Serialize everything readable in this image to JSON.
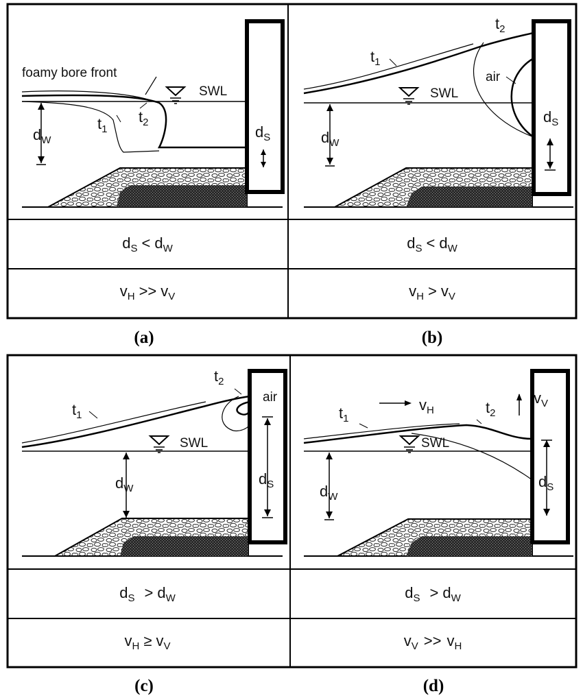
{
  "panels": {
    "a": {
      "caption": "(a)",
      "annotation": "foamy bore front",
      "swl": "SWL",
      "t1": "t",
      "t1_sub": "1",
      "t2": "t",
      "t2_sub": "2",
      "dw": "d",
      "dw_sub": "W",
      "ds": "d",
      "ds_sub": "S",
      "cond_depth": {
        "a": "d",
        "a_sub": "S",
        "op": "<",
        "b": "d",
        "b_sub": "W"
      },
      "cond_vel": {
        "a": "v",
        "a_sub": "H",
        "op": ">>",
        "b": "v",
        "b_sub": "V"
      }
    },
    "b": {
      "caption": "(b)",
      "air": "air",
      "swl": "SWL",
      "t1": "t",
      "t1_sub": "1",
      "t2": "t",
      "t2_sub": "2",
      "dw": "d",
      "dw_sub": "W",
      "ds": "d",
      "ds_sub": "S",
      "cond_depth": {
        "a": "d",
        "a_sub": "S",
        "op": "<",
        "b": "d",
        "b_sub": "W"
      },
      "cond_vel": {
        "a": "v",
        "a_sub": "H",
        "op": ">",
        "b": "v",
        "b_sub": "V"
      }
    },
    "c": {
      "caption": "(c)",
      "air": "air",
      "swl": "SWL",
      "t1": "t",
      "t1_sub": "1",
      "t2": "t",
      "t2_sub": "2",
      "dw": "d",
      "dw_sub": "W",
      "ds": "d",
      "ds_sub": "S",
      "cond_depth": {
        "a": "d",
        "a_sub": "S",
        "op": ">",
        "b": "d",
        "b_sub": "W"
      },
      "cond_vel": {
        "a": "v",
        "a_sub": "H",
        "op": "≥",
        "b": "v",
        "b_sub": "V"
      }
    },
    "d": {
      "caption": "(d)",
      "swl": "SWL",
      "vh": "v",
      "vh_sub": "H",
      "vv": "v",
      "vv_sub": "V",
      "t1": "t",
      "t1_sub": "1",
      "t2": "t",
      "t2_sub": "2",
      "dw": "d",
      "dw_sub": "W",
      "ds": "d",
      "ds_sub": "S",
      "cond_depth": {
        "a": "d",
        "a_sub": "S",
        "op": ">",
        "b": "d",
        "b_sub": "W"
      },
      "cond_vel": {
        "a": "v",
        "a_sub": "V",
        "op": ">>",
        "b": "v",
        "b_sub": "H"
      }
    }
  }
}
